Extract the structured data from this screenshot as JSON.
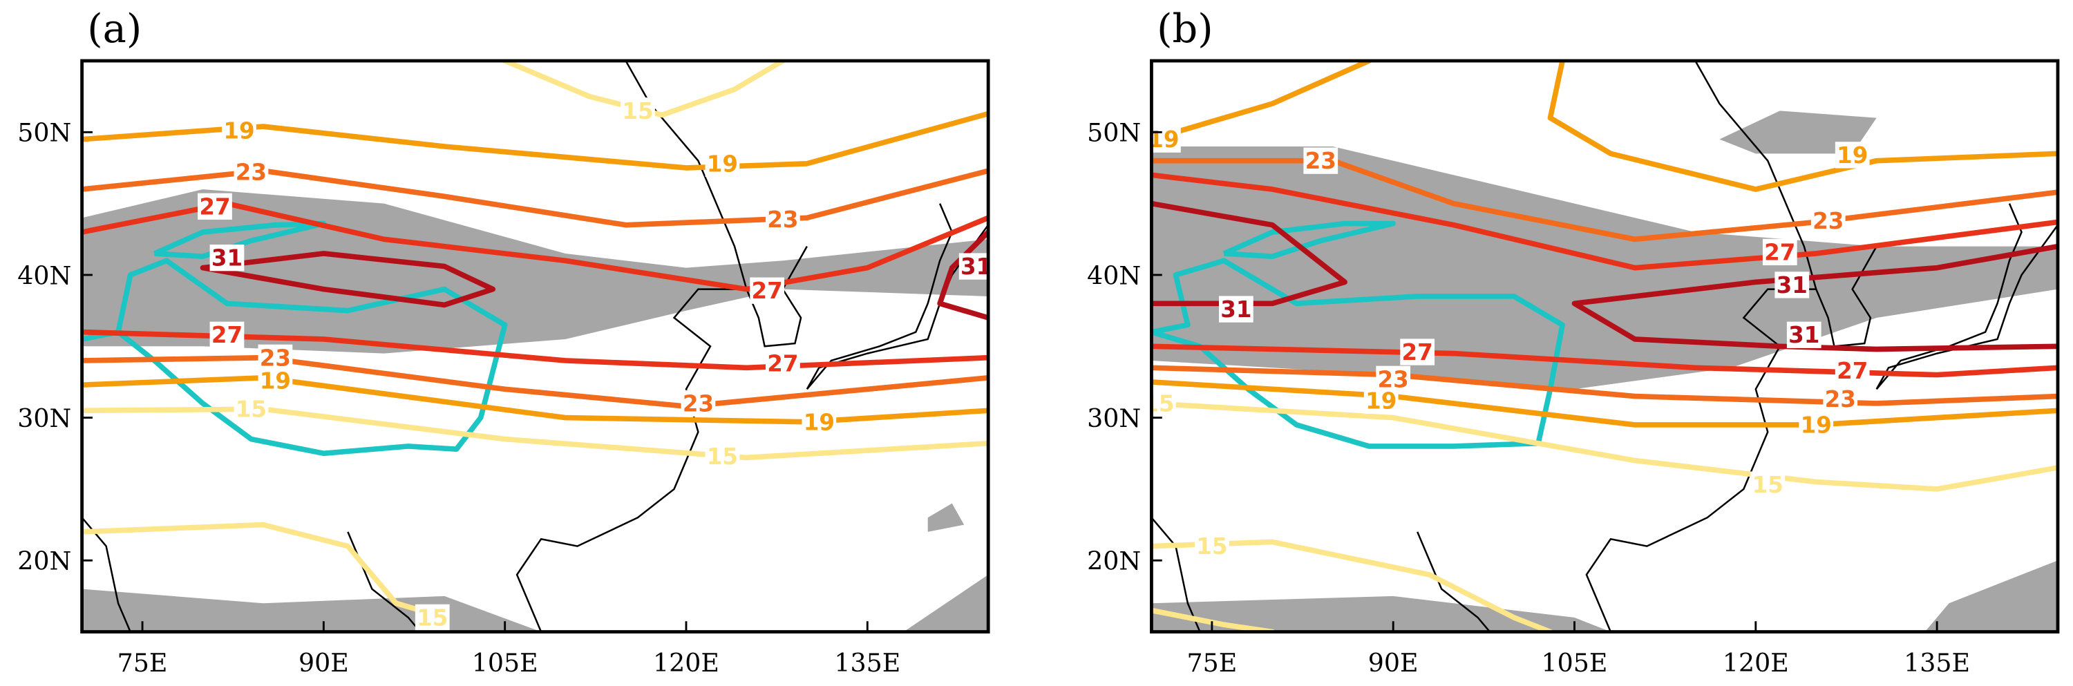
{
  "panels": [
    {
      "label": "(a)",
      "x_ticks": [
        "75E",
        "90E",
        "105E",
        "120E",
        "135E"
      ],
      "y_ticks": [
        "20N",
        "30N",
        "40N",
        "50N"
      ],
      "contour_levels": [
        19,
        23,
        27,
        31,
        31,
        27,
        23,
        19,
        15,
        15,
        15
      ]
    },
    {
      "label": "(b)",
      "x_ticks": [
        "75E",
        "90E",
        "105E",
        "120E",
        "135E"
      ],
      "y_ticks": [
        "20N",
        "30N",
        "40N",
        "50N"
      ],
      "contour_levels": [
        19,
        19,
        23,
        27,
        31,
        31,
        27,
        23,
        19,
        15,
        15,
        15
      ]
    }
  ],
  "level_colors": {
    "15": "#fde68a",
    "19": "#f59c0b",
    "23": "#f26a1b",
    "27": "#e8321a",
    "31": "#b4101a"
  }
}
